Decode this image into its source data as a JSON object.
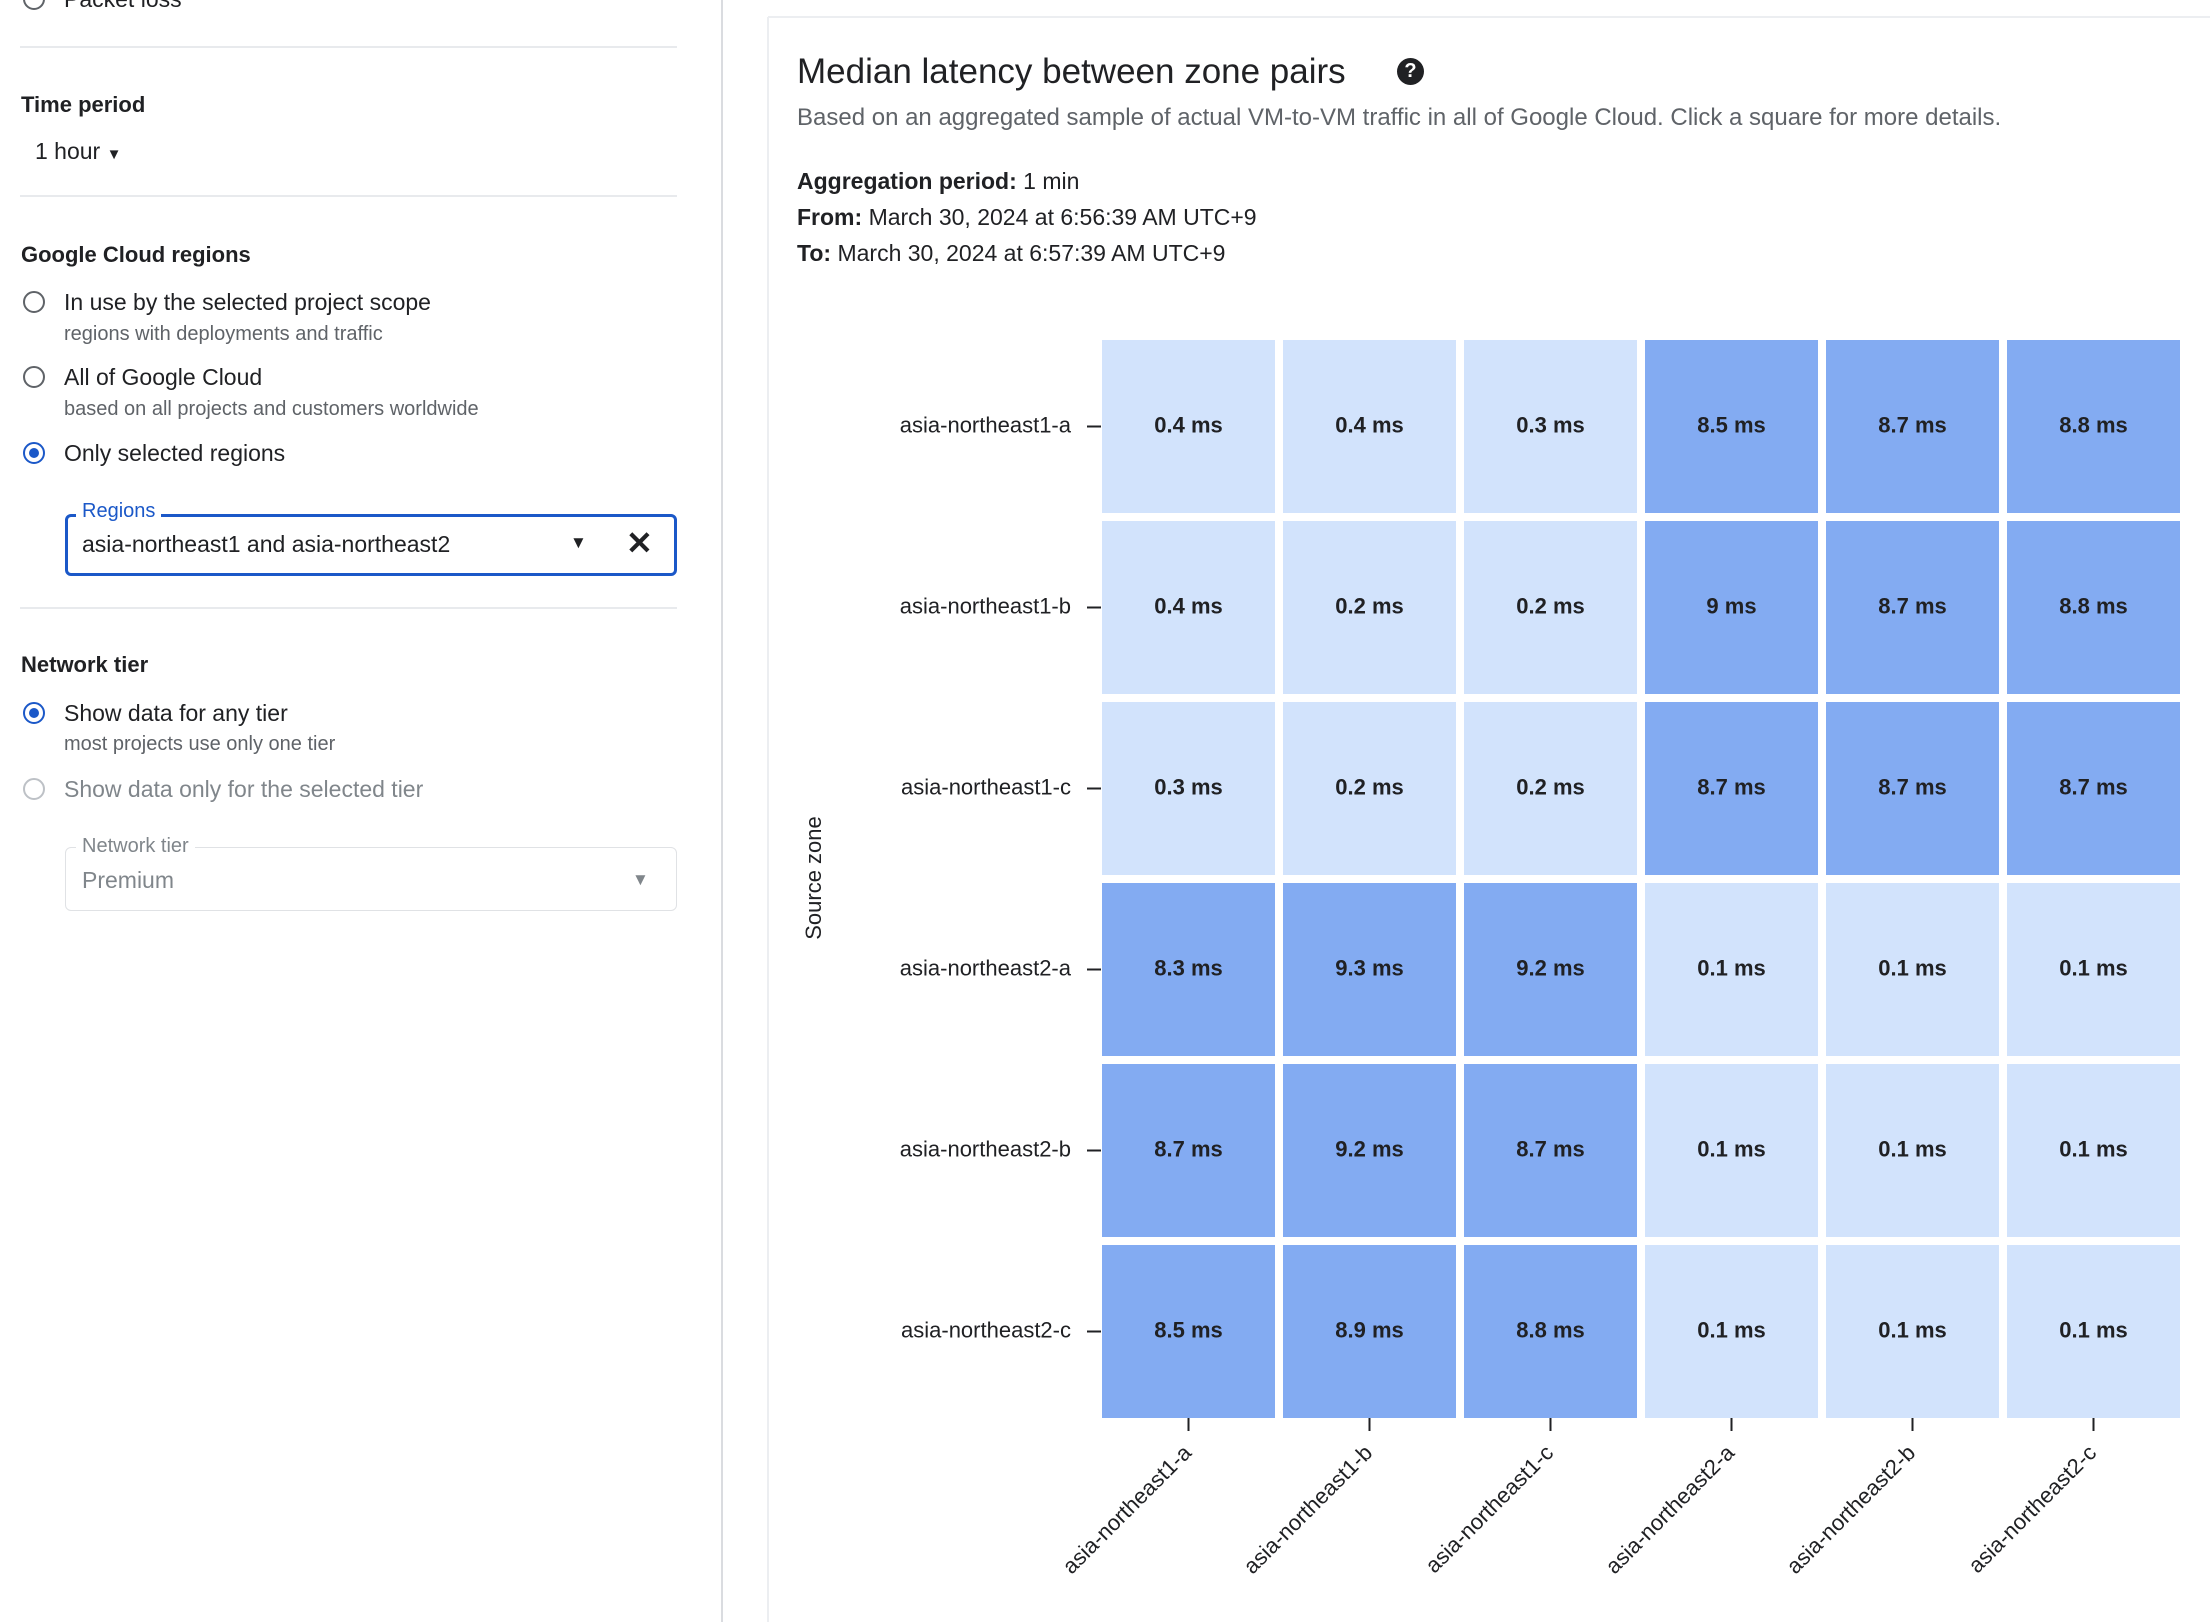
{
  "sidebar": {
    "partial_option": "Packet loss",
    "time_period": {
      "title": "Time period",
      "value": "1 hour"
    },
    "regions": {
      "title": "Google Cloud regions",
      "options": [
        {
          "label": "In use by the selected project scope",
          "description": "regions with deployments and traffic"
        },
        {
          "label": "All of Google Cloud",
          "description": "based on all projects and customers worldwide"
        },
        {
          "label": "Only selected regions"
        }
      ],
      "field_label": "Regions",
      "field_value": "asia-northeast1 and asia-northeast2"
    },
    "network_tier": {
      "title": "Network tier",
      "options": [
        {
          "label": "Show data for any tier",
          "description": "most projects use only one tier"
        },
        {
          "label": "Show data only for the selected tier"
        }
      ],
      "field_label": "Network tier",
      "field_value": "Premium"
    }
  },
  "panel": {
    "title": "Median latency between zone pairs",
    "subtitle": "Based on an aggregated sample of actual VM-to-VM traffic in all of Google Cloud. Click a square for more details.",
    "aggregation": {
      "label": "Aggregation period:",
      "value": "1 min"
    },
    "from": {
      "label": "From:",
      "value": "March 30, 2024 at 6:56:39 AM UTC+9"
    },
    "to": {
      "label": "To:",
      "value": "March 30, 2024 at 6:57:39 AM UTC+9"
    },
    "heatmap": {
      "y_label": "Source zone",
      "rows": [
        "asia-northeast1-a",
        "asia-northeast1-b",
        "asia-northeast1-c",
        "asia-northeast2-a",
        "asia-northeast2-b",
        "asia-northeast2-c"
      ],
      "columns": [
        "asia-northeast1-a",
        "asia-northeast1-b",
        "asia-northeast1-c",
        "asia-northeast2-a",
        "asia-northeast2-b",
        "asia-northeast2-c"
      ],
      "values": [
        [
          0.4,
          0.4,
          0.3,
          8.5,
          8.7,
          8.8
        ],
        [
          0.4,
          0.2,
          0.2,
          9,
          8.7,
          8.8
        ],
        [
          0.3,
          0.2,
          0.2,
          8.7,
          8.7,
          8.7
        ],
        [
          8.3,
          9.3,
          9.2,
          0.1,
          0.1,
          0.1
        ],
        [
          8.7,
          9.2,
          8.7,
          0.1,
          0.1,
          0.1
        ],
        [
          8.5,
          8.9,
          8.8,
          0.1,
          0.1,
          0.1
        ]
      ],
      "value_labels": [
        [
          "0.4 ms",
          "0.4 ms",
          "0.3 ms",
          "8.5 ms",
          "8.7 ms",
          "8.8 ms"
        ],
        [
          "0.4 ms",
          "0.2 ms",
          "0.2 ms",
          "9 ms",
          "8.7 ms",
          "8.8 ms"
        ],
        [
          "0.3 ms",
          "0.2 ms",
          "0.2 ms",
          "8.7 ms",
          "8.7 ms",
          "8.7 ms"
        ],
        [
          "8.3 ms",
          "9.3 ms",
          "9.2 ms",
          "0.1 ms",
          "0.1 ms",
          "0.1 ms"
        ],
        [
          "8.7 ms",
          "9.2 ms",
          "8.7 ms",
          "0.1 ms",
          "0.1 ms",
          "0.1 ms"
        ],
        [
          "8.5 ms",
          "8.9 ms",
          "8.8 ms",
          "0.1 ms",
          "0.1 ms",
          "0.1 ms"
        ]
      ],
      "low_color": "#d2e3fc",
      "high_color": "#83abf2"
    }
  }
}
